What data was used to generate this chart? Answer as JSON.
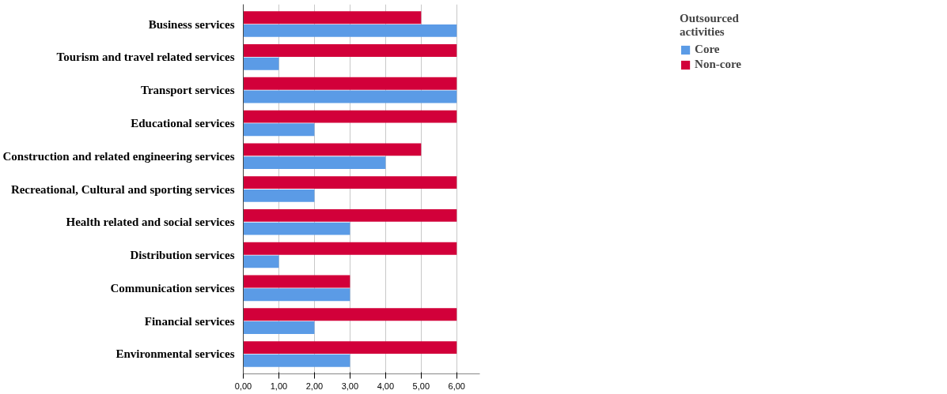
{
  "chart_data": {
    "type": "bar",
    "orientation": "horizontal",
    "legend_title": "Outsourced activities",
    "legend": "top right",
    "grid": "x",
    "categories": [
      "Business services",
      "Tourism and travel related services",
      "Transport services",
      "Educational services",
      "Construction and related engineering services",
      "Recreational, Cultural and sporting services",
      "Health related and social services",
      "Distribution services",
      "Communication services",
      "Financial services",
      "Environmental services"
    ],
    "series": [
      {
        "name": "Core",
        "color": "#5b9be6",
        "values": [
          6,
          1,
          6,
          2,
          4,
          2,
          3,
          1,
          3,
          2,
          3
        ]
      },
      {
        "name": "Non-core",
        "color": "#d2003a",
        "values": [
          5,
          6,
          6,
          6,
          5,
          6,
          6,
          6,
          3,
          6,
          6
        ]
      }
    ],
    "xlim": [
      0,
      6.65
    ],
    "xticks": [
      {
        "value": 0,
        "label": "0,00"
      },
      {
        "value": 1,
        "label": "1,00"
      },
      {
        "value": 2,
        "label": "2,00"
      },
      {
        "value": 3,
        "label": "3,00"
      },
      {
        "value": 4,
        "label": "4,00"
      },
      {
        "value": 5,
        "label": "5,00"
      },
      {
        "value": 6,
        "label": "6,00"
      }
    ]
  }
}
